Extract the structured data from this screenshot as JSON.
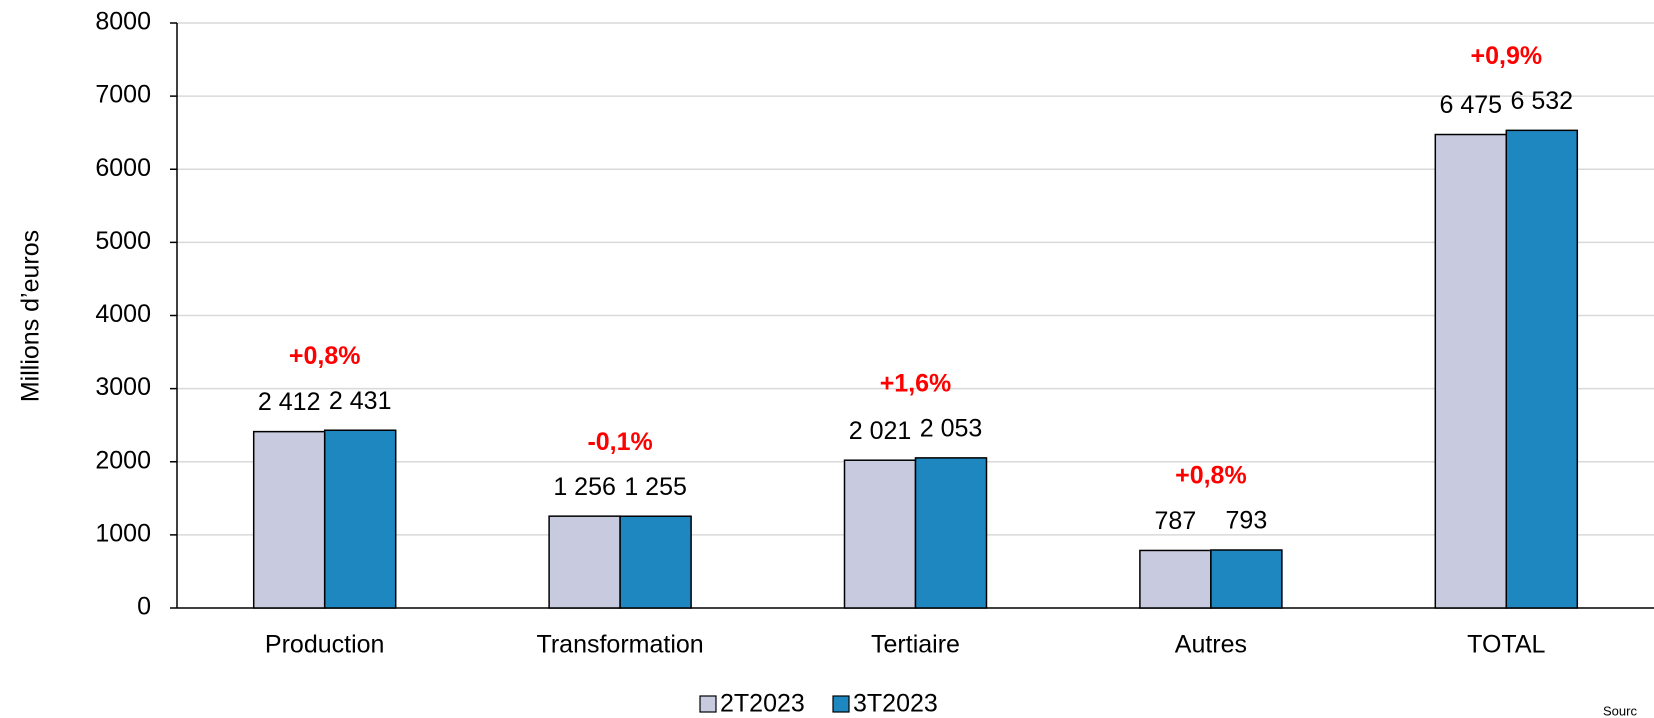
{
  "chart_data": {
    "type": "bar",
    "y_label": "Millions d’euros",
    "categories": [
      "Production",
      "Transformation",
      "Tertiaire",
      "Autres",
      "TOTAL"
    ],
    "series": [
      {
        "name": "2T2023",
        "color": "#c8cbe0",
        "values": [
          2412,
          1256,
          2021,
          787,
          6475
        ],
        "value_labels": [
          "2 412",
          "1 256",
          "2 021",
          "787",
          "6 475"
        ]
      },
      {
        "name": "3T2023",
        "color": "#1f87c0",
        "values": [
          2431,
          1255,
          2053,
          793,
          6532
        ],
        "value_labels": [
          "2 431",
          "1 255",
          "2 053",
          "793",
          "6 532"
        ]
      }
    ],
    "annotations": [
      "+0,8%",
      "-0,1%",
      "+1,6%",
      "+0,8%",
      "+0,9%"
    ],
    "annotation_color": "#ff0000",
    "ylim": [
      0,
      8000
    ],
    "yticks": [
      0,
      1000,
      2000,
      3000,
      4000,
      5000,
      6000,
      7000,
      8000
    ],
    "grid": true,
    "legend": "bottom",
    "source": "Sourc"
  }
}
